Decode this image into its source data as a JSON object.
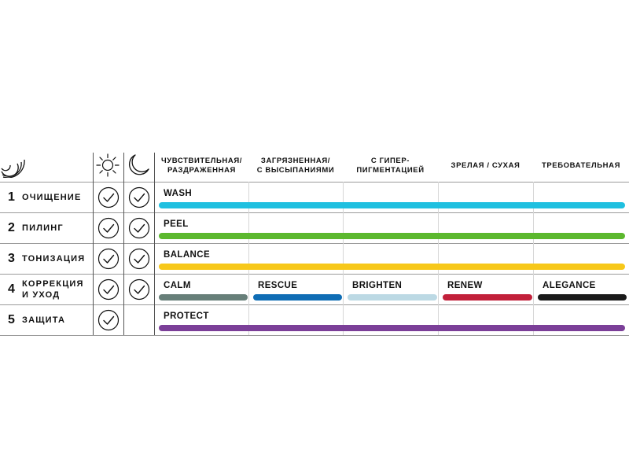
{
  "header": {
    "columns": [
      "ЧУВСТВИТЕЛЬНАЯ/\nРАЗДРАЖЕННАЯ",
      "ЗАГРЯЗНЕННАЯ/\nС ВЫСЫПАНИЯМИ",
      "С ГИПЕР-\nПИГМЕНТАЦИЕЙ",
      "ЗРЕЛАЯ / СУХАЯ",
      "ТРЕБОВАТЕЛЬНАЯ"
    ],
    "icons": [
      "sound-wave-icon",
      "sun-icon",
      "moon-icon"
    ]
  },
  "steps": [
    {
      "number": "1",
      "name": "ОЧИЩЕНИЕ",
      "day": true,
      "night": true,
      "products": [
        {
          "label": "WASH",
          "color": "#1fc0e0",
          "span": "all"
        }
      ]
    },
    {
      "number": "2",
      "name": "ПИЛИНГ",
      "day": true,
      "night": true,
      "products": [
        {
          "label": "PEEL",
          "color": "#5cb82e",
          "span": "all"
        }
      ]
    },
    {
      "number": "3",
      "name": "ТОНИЗАЦИЯ",
      "day": true,
      "night": true,
      "products": [
        {
          "label": "BALANCE",
          "color": "#f7c81a",
          "span": "all"
        }
      ]
    },
    {
      "number": "4",
      "name": "КОРРЕКЦИЯ\nИ УХОД",
      "day": true,
      "night": true,
      "products": [
        {
          "label": "CALM",
          "color": "#677f79"
        },
        {
          "label": "RESCUE",
          "color": "#0f6db5"
        },
        {
          "label": "BRIGHTEN",
          "color": "#bcd9e4"
        },
        {
          "label": "RENEW",
          "color": "#c2203a"
        },
        {
          "label": "ALEGANCE",
          "color": "#1a1a1a"
        }
      ]
    },
    {
      "number": "5",
      "name": "ЗАЩИТА",
      "day": true,
      "night": false,
      "products": [
        {
          "label": "PROTECT",
          "color": "#7b3f98",
          "span": "all"
        }
      ]
    }
  ]
}
